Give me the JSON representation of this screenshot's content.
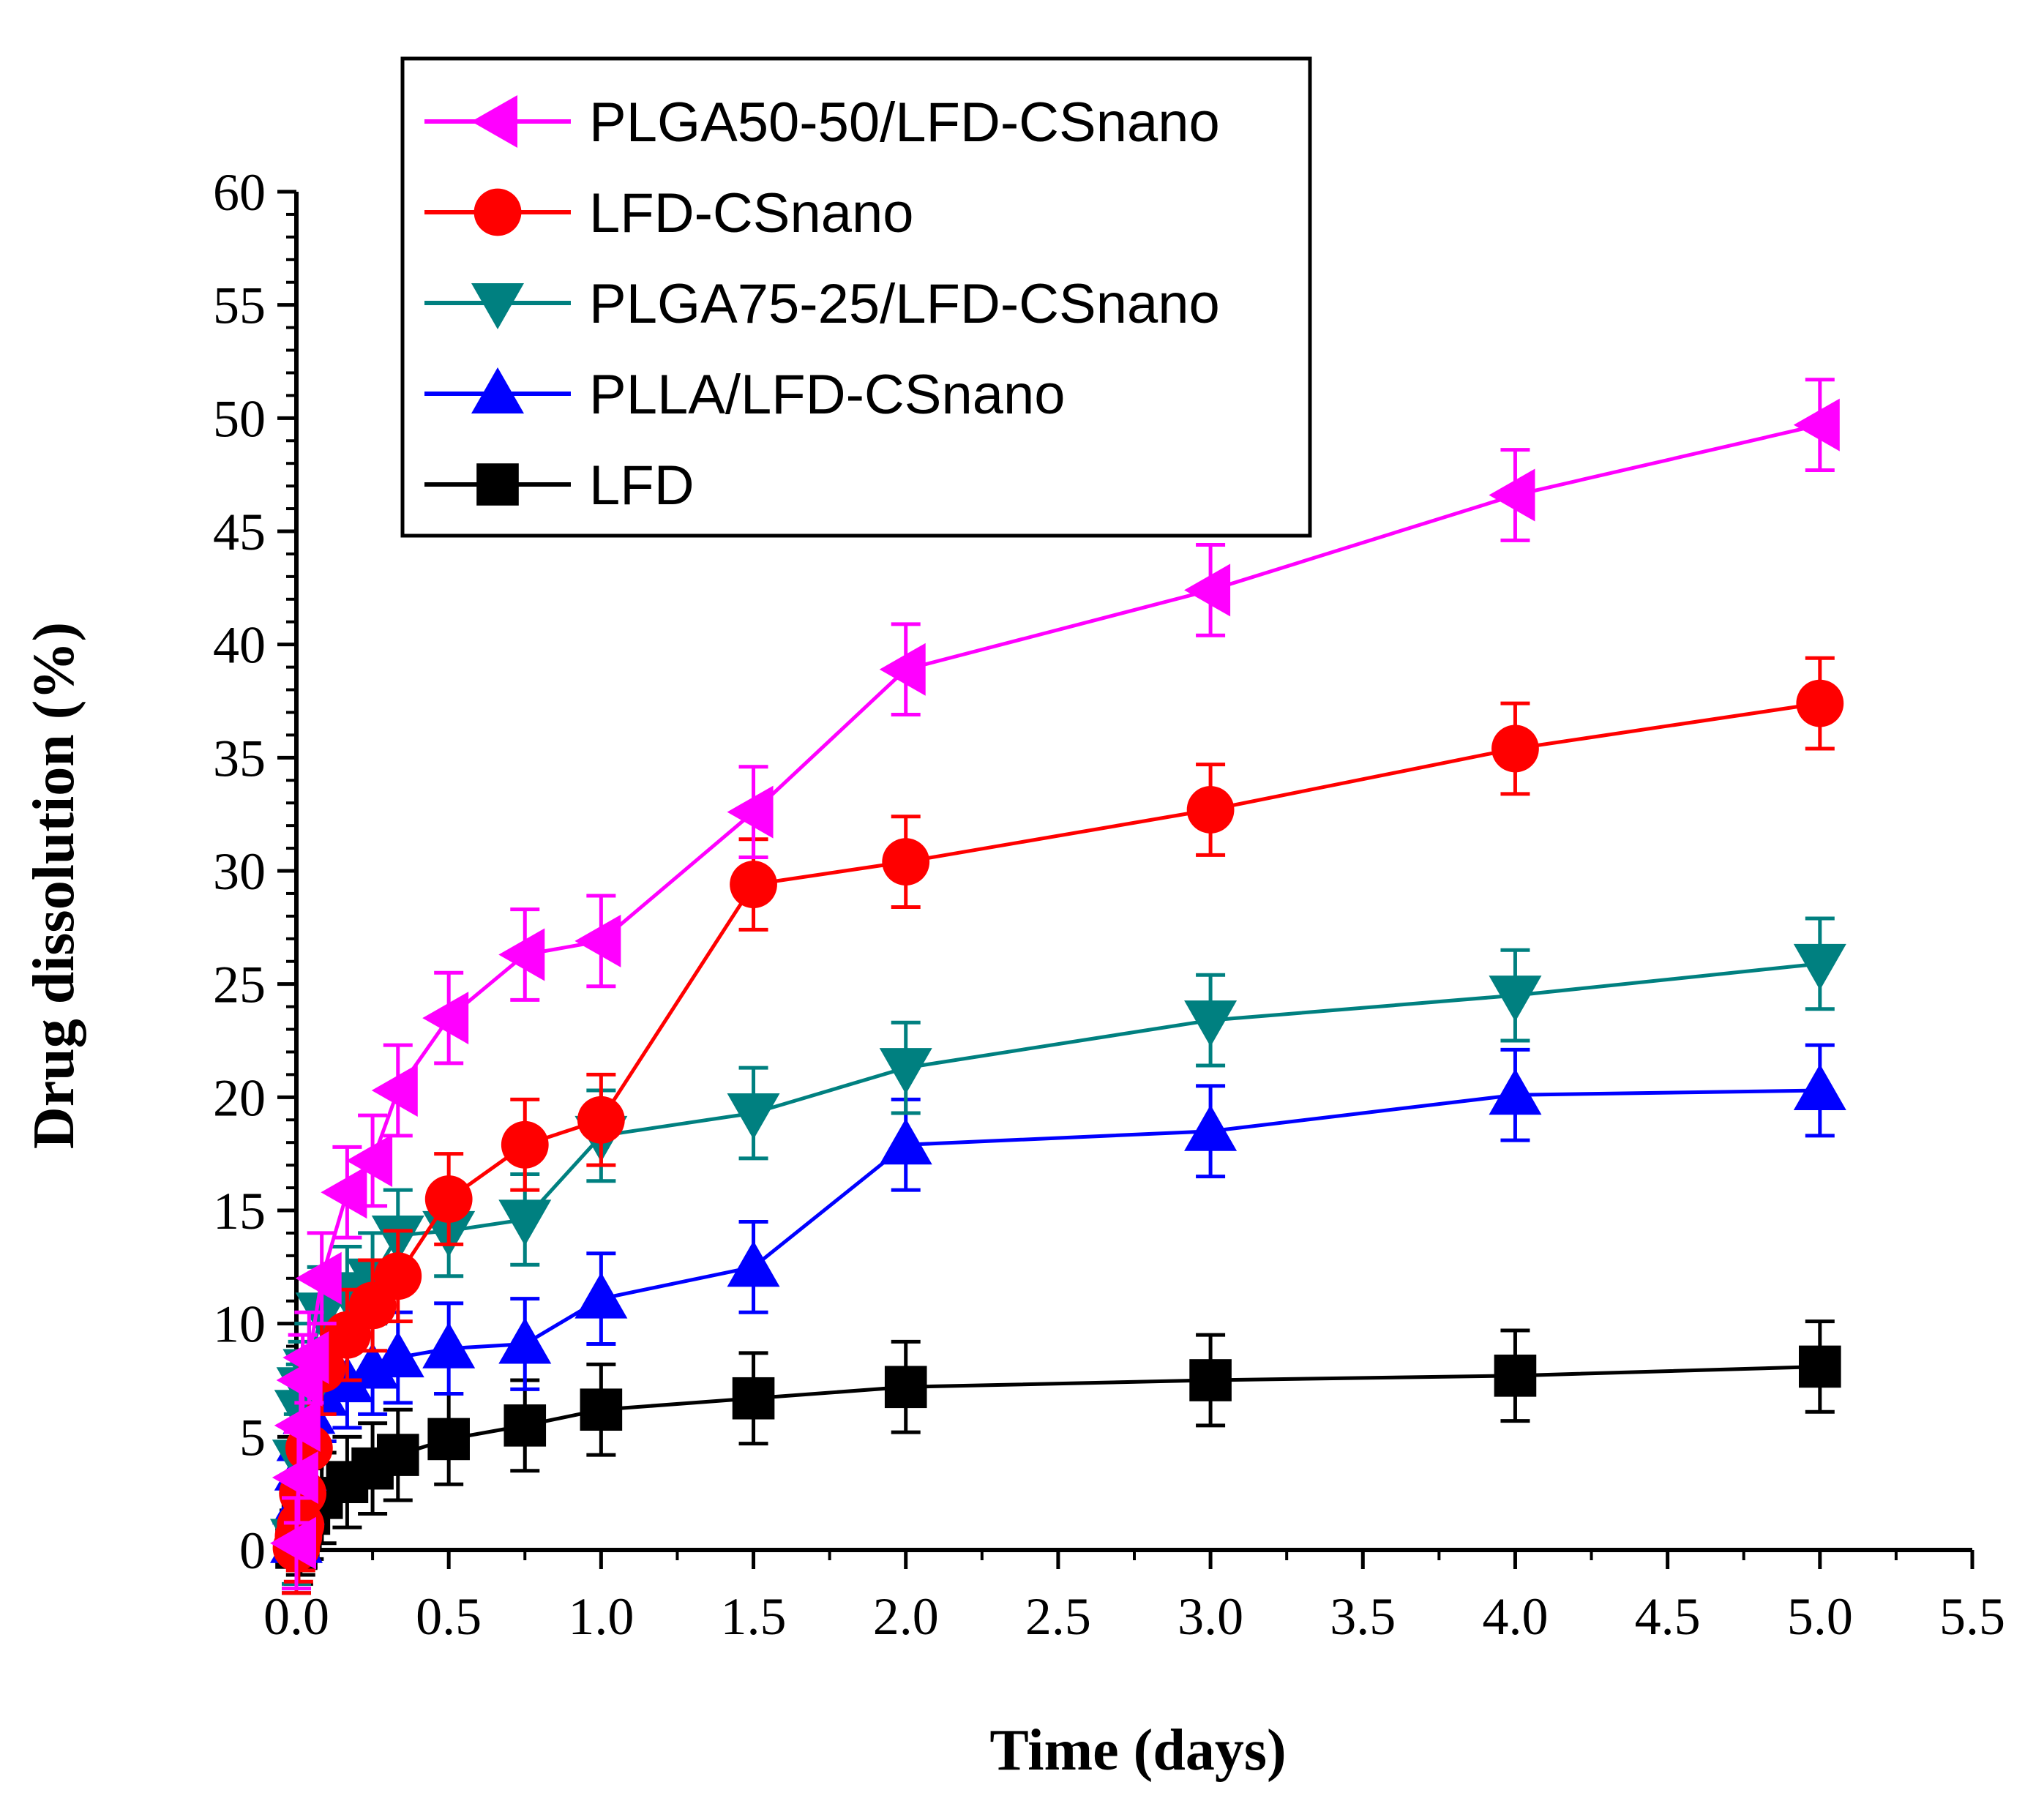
{
  "chart_data": {
    "type": "line",
    "title": "",
    "xlabel": "Time (days)",
    "ylabel": "Drug dissolution (%)",
    "xlim": [
      0,
      5.5
    ],
    "ylim": [
      0,
      60
    ],
    "x_ticks": [
      0.0,
      0.5,
      1.0,
      1.5,
      2.0,
      2.5,
      3.0,
      3.5,
      4.0,
      4.5,
      5.0,
      5.5
    ],
    "x_tick_labels": [
      "0.0",
      "0.5",
      "1.0",
      "1.5",
      "2.0",
      "2.5",
      "3.0",
      "3.5",
      "4.0",
      "4.5",
      "5.0",
      "5.5"
    ],
    "y_ticks": [
      0,
      5,
      10,
      15,
      20,
      25,
      30,
      35,
      40,
      45,
      50,
      55,
      60
    ],
    "y_tick_labels": [
      "0",
      "5",
      "10",
      "15",
      "20",
      "25",
      "30",
      "35",
      "40",
      "45",
      "50",
      "55",
      "60"
    ],
    "legend_position": "top-left",
    "error_bar": 2.0,
    "x": [
      0,
      0.0069,
      0.0139,
      0.0208,
      0.0417,
      0.0833,
      0.1667,
      0.25,
      0.3333,
      0.5,
      0.75,
      1.0,
      1.5,
      2.0,
      3.0,
      4.0,
      5.0
    ],
    "series": [
      {
        "name": "PLGA50-50/LFD-CSnano",
        "color": "#ff00ff",
        "marker": "triangle-left",
        "values": [
          0.3,
          3.2,
          5.5,
          7.5,
          8.5,
          12.0,
          15.8,
          17.2,
          20.3,
          23.5,
          26.3,
          26.9,
          32.6,
          38.9,
          42.4,
          46.6,
          49.7
        ]
      },
      {
        "name": "LFD-CSnano",
        "color": "#ff0000",
        "marker": "circle",
        "values": [
          0.1,
          0.6,
          1.1,
          2.5,
          4.5,
          8.0,
          9.5,
          10.8,
          12.1,
          15.5,
          17.9,
          19.0,
          29.4,
          30.4,
          32.7,
          35.4,
          37.4
        ]
      },
      {
        "name": "PLGA75-25/LFD-CSnano",
        "color": "#008080",
        "marker": "triangle-down",
        "values": [
          0.5,
          4.0,
          6.2,
          7.2,
          8.0,
          10.5,
          11.4,
          12.0,
          13.9,
          14.1,
          14.6,
          18.3,
          19.3,
          21.3,
          23.4,
          24.5,
          25.9
        ]
      },
      {
        "name": "PLLA/LFD-CSnano",
        "color": "#0000ff",
        "marker": "triangle-up",
        "values": [
          0.3,
          2.0,
          3.5,
          4.8,
          6.0,
          6.8,
          7.4,
          8.0,
          8.5,
          8.9,
          9.1,
          11.1,
          12.5,
          17.9,
          18.5,
          20.1,
          20.3
        ]
      },
      {
        "name": "LFD",
        "color": "#000000",
        "marker": "square",
        "values": [
          0.1,
          0.5,
          0.9,
          1.2,
          1.6,
          2.3,
          3.0,
          3.6,
          4.2,
          4.9,
          5.5,
          6.2,
          6.7,
          7.2,
          7.5,
          7.7,
          8.1
        ]
      }
    ]
  }
}
